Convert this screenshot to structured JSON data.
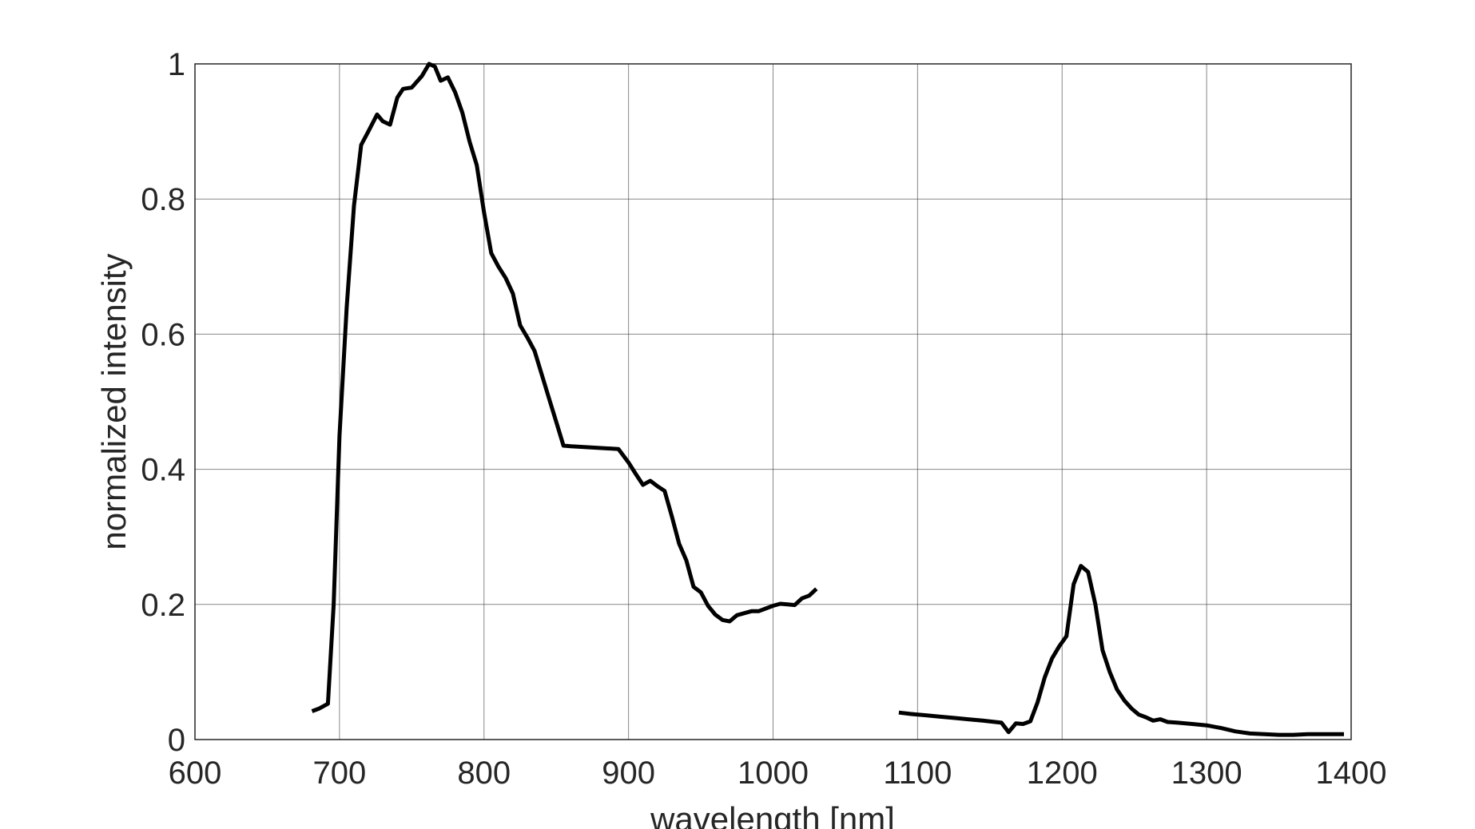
{
  "chart_data": {
    "type": "line",
    "title": "",
    "xlabel": "wavelength [nm]",
    "ylabel": "normalized intensity",
    "xlim": [
      600,
      1400
    ],
    "ylim": [
      0,
      1
    ],
    "xticks": [
      600,
      700,
      800,
      900,
      1000,
      1100,
      1200,
      1300,
      1400
    ],
    "yticks": [
      0,
      0.2,
      0.4,
      0.6,
      0.8,
      1
    ],
    "xtick_labels": [
      "600",
      "700",
      "800",
      "900",
      "1000",
      "1100",
      "1200",
      "1300",
      "1400"
    ],
    "ytick_labels": [
      "0",
      "0.2",
      "0.4",
      "0.6",
      "0.8",
      "1"
    ],
    "grid": true,
    "line_color": "#000000",
    "series": [
      {
        "x": [
          681,
          686,
          692,
          696,
          700,
          705,
          710,
          715,
          720,
          726,
          730,
          735,
          740,
          744,
          750,
          757,
          762,
          766,
          770,
          775,
          780,
          785,
          790,
          795,
          800,
          805,
          810,
          815,
          820,
          825,
          830,
          835,
          840,
          845,
          850,
          855,
          860,
          893,
          900,
          905,
          910,
          915,
          920,
          925,
          930,
          935,
          940,
          945,
          950,
          955,
          960,
          965,
          970,
          975,
          980,
          985,
          990,
          995,
          1000,
          1005,
          1010,
          1015,
          1020,
          1025,
          1030
        ],
        "y": [
          0.042,
          0.046,
          0.053,
          0.2,
          0.45,
          0.64,
          0.79,
          0.88,
          0.9,
          0.925,
          0.915,
          0.91,
          0.95,
          0.963,
          0.965,
          0.982,
          1.0,
          0.996,
          0.975,
          0.98,
          0.958,
          0.928,
          0.885,
          0.85,
          0.78,
          0.72,
          0.7,
          0.683,
          0.66,
          0.613,
          0.595,
          0.575,
          0.54,
          0.505,
          0.47,
          0.435,
          0.434,
          0.43,
          0.41,
          0.393,
          0.377,
          0.383,
          0.375,
          0.368,
          0.33,
          0.29,
          0.265,
          0.226,
          0.218,
          0.198,
          0.185,
          0.177,
          0.175,
          0.184,
          0.187,
          0.19,
          0.19,
          0.194,
          0.198,
          0.201,
          0.2,
          0.199,
          0.209,
          0.213,
          0.223
        ]
      },
      {
        "x": [
          1087,
          1095,
          1105,
          1115,
          1125,
          1135,
          1145,
          1158,
          1163,
          1168,
          1173,
          1178,
          1183,
          1188,
          1193,
          1198,
          1203,
          1208,
          1213,
          1218,
          1223,
          1228,
          1233,
          1238,
          1243,
          1248,
          1253,
          1258,
          1263,
          1268,
          1273,
          1280,
          1290,
          1300,
          1310,
          1320,
          1330,
          1340,
          1350,
          1360,
          1370,
          1380,
          1390,
          1395
        ],
        "y": [
          0.04,
          0.038,
          0.036,
          0.034,
          0.032,
          0.03,
          0.028,
          0.025,
          0.011,
          0.024,
          0.023,
          0.027,
          0.055,
          0.092,
          0.12,
          0.138,
          0.153,
          0.23,
          0.257,
          0.248,
          0.2,
          0.132,
          0.1,
          0.074,
          0.058,
          0.046,
          0.037,
          0.033,
          0.028,
          0.03,
          0.026,
          0.025,
          0.023,
          0.021,
          0.017,
          0.012,
          0.009,
          0.008,
          0.007,
          0.007,
          0.008,
          0.008,
          0.008,
          0.008
        ]
      }
    ]
  }
}
